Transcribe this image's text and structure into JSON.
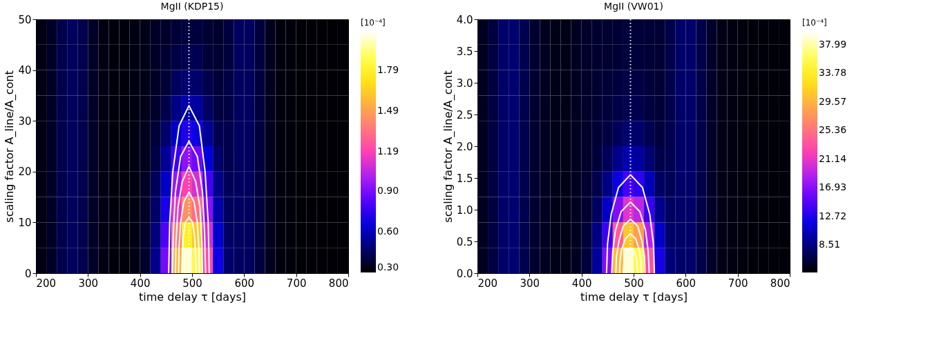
{
  "chart_data": [
    {
      "type": "heatmap",
      "title": "MgII (KDP15)",
      "xlabel": "time delay  τ [days]",
      "ylabel": "scaling factor  A_line/A_cont",
      "clabel": "[10⁻⁴]",
      "x": [
        210,
        230,
        250,
        270,
        290,
        310,
        330,
        350,
        370,
        390,
        410,
        430,
        450,
        470,
        490,
        510,
        530,
        550,
        570,
        590,
        610,
        630,
        650,
        670,
        690,
        710,
        730,
        750,
        770,
        790
      ],
      "y": [
        47.5,
        42.5,
        37.5,
        32.5,
        27.5,
        22.5,
        17.5,
        12.5,
        7.5,
        2.5
      ],
      "cells": [
        [
          0.33,
          0.36,
          0.42,
          0.45,
          0.42,
          0.36,
          0.33,
          0.32,
          0.32,
          0.33,
          0.34,
          0.36,
          0.37,
          0.39,
          0.4,
          0.4,
          0.38,
          0.37,
          0.4,
          0.45,
          0.45,
          0.4,
          0.35,
          0.32,
          0.32,
          0.31,
          0.31,
          0.31,
          0.31,
          0.31
        ],
        [
          0.33,
          0.36,
          0.42,
          0.45,
          0.42,
          0.36,
          0.33,
          0.32,
          0.32,
          0.33,
          0.34,
          0.36,
          0.38,
          0.41,
          0.43,
          0.43,
          0.39,
          0.38,
          0.4,
          0.45,
          0.45,
          0.4,
          0.35,
          0.32,
          0.32,
          0.31,
          0.31,
          0.31,
          0.31,
          0.31
        ],
        [
          0.33,
          0.36,
          0.42,
          0.45,
          0.42,
          0.36,
          0.33,
          0.32,
          0.32,
          0.33,
          0.34,
          0.36,
          0.39,
          0.45,
          0.48,
          0.47,
          0.42,
          0.39,
          0.41,
          0.45,
          0.45,
          0.4,
          0.35,
          0.32,
          0.32,
          0.31,
          0.31,
          0.31,
          0.31,
          0.31
        ],
        [
          0.33,
          0.36,
          0.42,
          0.45,
          0.42,
          0.36,
          0.33,
          0.32,
          0.32,
          0.33,
          0.34,
          0.37,
          0.42,
          0.51,
          0.57,
          0.55,
          0.46,
          0.4,
          0.41,
          0.45,
          0.45,
          0.4,
          0.35,
          0.32,
          0.32,
          0.31,
          0.31,
          0.31,
          0.31,
          0.31
        ],
        [
          0.33,
          0.36,
          0.42,
          0.45,
          0.42,
          0.36,
          0.33,
          0.32,
          0.32,
          0.33,
          0.35,
          0.39,
          0.47,
          0.62,
          0.72,
          0.68,
          0.54,
          0.43,
          0.42,
          0.45,
          0.45,
          0.4,
          0.35,
          0.32,
          0.32,
          0.31,
          0.31,
          0.31,
          0.31,
          0.31
        ],
        [
          0.33,
          0.36,
          0.42,
          0.45,
          0.42,
          0.36,
          0.33,
          0.32,
          0.32,
          0.33,
          0.35,
          0.41,
          0.54,
          0.77,
          0.94,
          0.88,
          0.65,
          0.47,
          0.42,
          0.45,
          0.45,
          0.4,
          0.35,
          0.32,
          0.32,
          0.31,
          0.31,
          0.31,
          0.31,
          0.31
        ],
        [
          0.33,
          0.36,
          0.42,
          0.45,
          0.42,
          0.36,
          0.33,
          0.32,
          0.32,
          0.33,
          0.36,
          0.44,
          0.62,
          0.96,
          1.19,
          1.1,
          0.79,
          0.52,
          0.44,
          0.45,
          0.45,
          0.4,
          0.35,
          0.32,
          0.32,
          0.31,
          0.31,
          0.31,
          0.31,
          0.31
        ],
        [
          0.33,
          0.36,
          0.42,
          0.45,
          0.42,
          0.36,
          0.33,
          0.32,
          0.32,
          0.33,
          0.36,
          0.46,
          0.7,
          1.14,
          1.44,
          1.33,
          0.92,
          0.57,
          0.45,
          0.45,
          0.45,
          0.4,
          0.35,
          0.32,
          0.32,
          0.31,
          0.31,
          0.31,
          0.31,
          0.31
        ],
        [
          0.33,
          0.36,
          0.42,
          0.45,
          0.42,
          0.36,
          0.33,
          0.32,
          0.32,
          0.33,
          0.37,
          0.49,
          0.81,
          1.38,
          1.78,
          1.63,
          1.09,
          0.63,
          0.46,
          0.45,
          0.45,
          0.4,
          0.35,
          0.32,
          0.32,
          0.31,
          0.31,
          0.31,
          0.31,
          0.31
        ],
        [
          0.33,
          0.36,
          0.42,
          0.45,
          0.42,
          0.36,
          0.33,
          0.32,
          0.32,
          0.33,
          0.37,
          0.52,
          0.89,
          1.56,
          2.03,
          1.85,
          1.22,
          0.68,
          0.47,
          0.45,
          0.45,
          0.4,
          0.35,
          0.32,
          0.32,
          0.31,
          0.31,
          0.31,
          0.31,
          0.31
        ]
      ],
      "colors": [
        "#000000",
        "#000070",
        "#0000e0",
        "#5a00ff",
        "#b020f0",
        "#ff40b0",
        "#ff7a78",
        "#ffb040",
        "#ffe810",
        "#ffff60",
        "#ffffff"
      ],
      "clim": [
        0.3,
        2.08
      ],
      "cticks": [
        {
          "value": 0.3,
          "label": "0.30"
        },
        {
          "value": 0.6,
          "label": "0.60"
        },
        {
          "value": 0.9,
          "label": "0.90"
        },
        1.19,
        1.49,
        1.79
      ],
      "xlim": [
        200,
        800
      ],
      "xticks": [
        200,
        300,
        400,
        500,
        600,
        700,
        800
      ],
      "ylim": [
        0,
        50
      ],
      "yticks": [
        0,
        10,
        20,
        30,
        40,
        50
      ],
      "series": [
        {
          "type": "line",
          "color": "#ffffff",
          "x": [
            455,
            457,
            463,
            475,
            494,
            514,
            525,
            531,
            533
          ],
          "values": [
            0,
            10,
            20,
            29,
            33,
            29,
            20,
            10,
            0
          ]
        },
        {
          "type": "line",
          "color": "#ffffff",
          "x": [
            462,
            464,
            468,
            478,
            494,
            510,
            520,
            524,
            526
          ],
          "values": [
            0,
            8,
            16,
            23,
            26,
            23,
            16,
            8,
            0
          ]
        },
        {
          "type": "line",
          "color": "#ffffff",
          "x": [
            468,
            469,
            473,
            481,
            494,
            507,
            515,
            519,
            520
          ],
          "values": [
            0,
            6,
            13,
            18,
            21,
            18,
            13,
            6,
            0
          ]
        },
        {
          "type": "line",
          "color": "#ffffff",
          "x": [
            474,
            475,
            478,
            484,
            494,
            504,
            510,
            513,
            514
          ],
          "values": [
            0,
            5,
            10,
            14,
            16,
            14,
            10,
            5,
            0
          ]
        },
        {
          "type": "line",
          "color": "#ffffff",
          "x": [
            480,
            481,
            483,
            487,
            494,
            501,
            505,
            507,
            508
          ],
          "values": [
            0,
            3,
            7,
            10,
            11,
            10,
            7,
            3,
            0
          ]
        }
      ],
      "ref_lines": [
        {
          "axis": "x",
          "value": 494,
          "color": "#ffffff",
          "line_style": "dotted"
        }
      ],
      "grid": false
    },
    {
      "type": "heatmap",
      "title": "MgII (VW01)",
      "xlabel": "time delay  τ [days]",
      "ylabel": "scaling factor  A_line/A_cont",
      "clabel": "[10⁻⁴]",
      "x": [
        210,
        230,
        250,
        270,
        290,
        310,
        330,
        350,
        370,
        390,
        410,
        430,
        450,
        470,
        490,
        510,
        530,
        550,
        570,
        590,
        610,
        630,
        650,
        670,
        690,
        710,
        730,
        750,
        770,
        790
      ],
      "y": [
        3.8,
        3.4,
        3.0,
        2.6,
        2.2,
        1.8,
        1.4,
        1.0,
        0.6,
        0.2
      ],
      "cells": [
        [
          5.5,
          6.5,
          7.8,
          8.0,
          7.0,
          6.0,
          5.5,
          5.2,
          5.2,
          5.5,
          5.8,
          6.0,
          6.1,
          6.2,
          6.3,
          6.3,
          6.2,
          6.1,
          6.8,
          7.8,
          7.8,
          6.8,
          5.8,
          5.2,
          5.0,
          4.9,
          4.8,
          4.8,
          4.8,
          4.8
        ],
        [
          5.5,
          6.5,
          7.8,
          8.0,
          7.0,
          6.0,
          5.5,
          5.2,
          5.2,
          5.5,
          5.8,
          6.0,
          6.1,
          6.2,
          6.3,
          6.3,
          6.2,
          6.1,
          6.8,
          7.8,
          7.8,
          6.8,
          5.8,
          5.2,
          5.0,
          4.9,
          4.8,
          4.8,
          4.8,
          4.8
        ],
        [
          5.5,
          6.5,
          7.8,
          8.0,
          7.0,
          6.0,
          5.5,
          5.2,
          5.2,
          5.5,
          5.8,
          6.1,
          6.2,
          6.5,
          6.7,
          6.6,
          6.3,
          6.1,
          6.8,
          7.8,
          7.8,
          6.8,
          5.8,
          5.2,
          5.0,
          4.9,
          4.8,
          4.8,
          4.8,
          4.8
        ],
        [
          5.5,
          6.5,
          7.8,
          8.0,
          7.0,
          6.0,
          5.5,
          5.2,
          5.2,
          5.5,
          5.8,
          6.1,
          6.3,
          6.7,
          7.0,
          6.9,
          6.5,
          6.2,
          6.8,
          7.8,
          7.8,
          6.8,
          5.8,
          5.2,
          5.0,
          4.9,
          4.8,
          4.8,
          4.8,
          4.8
        ],
        [
          5.5,
          6.5,
          7.8,
          8.0,
          7.0,
          6.0,
          5.5,
          5.2,
          5.2,
          5.5,
          5.8,
          6.2,
          6.6,
          7.4,
          8.0,
          7.8,
          7.0,
          6.4,
          6.9,
          7.8,
          7.8,
          6.8,
          5.8,
          5.2,
          5.0,
          4.9,
          4.8,
          4.8,
          4.8,
          4.8
        ],
        [
          5.5,
          6.5,
          7.8,
          8.0,
          7.0,
          6.0,
          5.5,
          5.2,
          5.2,
          5.5,
          5.9,
          6.4,
          7.3,
          8.9,
          10.0,
          9.5,
          8.1,
          6.8,
          7.0,
          7.8,
          7.8,
          6.8,
          5.8,
          5.2,
          5.0,
          4.9,
          4.8,
          4.8,
          4.8,
          4.8
        ],
        [
          5.5,
          6.5,
          7.8,
          8.0,
          7.0,
          6.0,
          5.5,
          5.2,
          5.2,
          5.5,
          6.0,
          6.9,
          8.7,
          12.0,
          14.3,
          13.4,
          10.3,
          7.6,
          7.2,
          7.8,
          7.8,
          6.8,
          5.8,
          5.2,
          5.0,
          4.9,
          4.8,
          4.8,
          4.8,
          4.8
        ],
        [
          5.5,
          6.5,
          7.8,
          8.0,
          7.0,
          6.0,
          5.5,
          5.2,
          5.2,
          5.5,
          6.1,
          7.5,
          10.8,
          16.7,
          20.9,
          19.3,
          13.7,
          8.9,
          7.5,
          7.8,
          7.8,
          6.8,
          5.8,
          5.2,
          5.0,
          4.9,
          4.8,
          4.8,
          4.8,
          4.8
        ],
        [
          5.5,
          6.5,
          7.8,
          8.0,
          7.0,
          6.0,
          5.5,
          5.2,
          5.2,
          5.5,
          6.3,
          8.6,
          14.0,
          23.9,
          30.8,
          28.1,
          18.8,
          10.8,
          7.9,
          7.8,
          7.8,
          6.8,
          5.8,
          5.2,
          5.0,
          4.9,
          4.8,
          4.8,
          4.8,
          4.8
        ],
        [
          5.5,
          6.5,
          7.8,
          8.0,
          7.0,
          6.0,
          5.5,
          5.2,
          5.2,
          5.5,
          6.4,
          9.4,
          16.7,
          29.8,
          39.0,
          35.5,
          23.1,
          12.4,
          8.3,
          7.8,
          7.8,
          6.8,
          5.8,
          5.2,
          5.0,
          4.9,
          4.8,
          4.8,
          4.8,
          4.8
        ]
      ],
      "colors": [
        "#000000",
        "#000070",
        "#0000e0",
        "#5a00ff",
        "#b020f0",
        "#ff40b0",
        "#ff7a78",
        "#ffb040",
        "#ffe810",
        "#ffff60",
        "#ffffff"
      ],
      "clim": [
        4.47,
        39.97
      ],
      "cticks": [
        8.51,
        12.72,
        16.93,
        21.14,
        25.36,
        29.57,
        33.78,
        37.99
      ],
      "xlim": [
        200,
        800
      ],
      "xticks": [
        200,
        300,
        400,
        500,
        600,
        700,
        800
      ],
      "ylim": [
        0,
        4
      ],
      "yticks": [
        {
          "value": 0,
          "label": "0.0"
        },
        0.5,
        {
          "value": 1,
          "label": "1.0"
        },
        1.5,
        {
          "value": 2,
          "label": "2.0"
        },
        2.5,
        {
          "value": 3,
          "label": "3.0"
        },
        3.5,
        {
          "value": 4,
          "label": "4.0"
        }
      ],
      "series": [
        {
          "type": "line",
          "color": "#ffffff",
          "x": [
            448,
            450,
            457,
            471,
            494,
            517,
            531,
            538,
            540
          ],
          "values": [
            0,
            0.47,
            0.93,
            1.35,
            1.55,
            1.35,
            0.93,
            0.47,
            0
          ]
        },
        {
          "type": "line",
          "color": "#ffffff",
          "x": [
            458,
            460,
            465,
            476,
            494,
            512,
            523,
            528,
            530
          ],
          "values": [
            0,
            0.34,
            0.67,
            0.97,
            1.12,
            0.97,
            0.67,
            0.34,
            0
          ]
        },
        {
          "type": "line",
          "color": "#ffffff",
          "x": [
            466,
            467,
            472,
            480,
            494,
            508,
            516,
            521,
            522
          ],
          "values": [
            0,
            0.26,
            0.51,
            0.74,
            0.85,
            0.74,
            0.51,
            0.26,
            0
          ]
        },
        {
          "type": "line",
          "color": "#ffffff",
          "x": [
            473,
            474,
            477,
            484,
            494,
            504,
            511,
            514,
            515
          ],
          "values": [
            0,
            0.19,
            0.37,
            0.54,
            0.62,
            0.54,
            0.37,
            0.19,
            0
          ]
        },
        {
          "type": "line",
          "color": "#ffffff",
          "x": [
            480,
            481,
            483,
            487,
            494,
            501,
            505,
            507,
            508
          ],
          "values": [
            0,
            0.12,
            0.24,
            0.35,
            0.4,
            0.35,
            0.24,
            0.12,
            0
          ]
        }
      ],
      "ref_lines": [
        {
          "axis": "x",
          "value": 494,
          "color": "#ffffff",
          "line_style": "dotted"
        }
      ],
      "grid": false
    }
  ]
}
